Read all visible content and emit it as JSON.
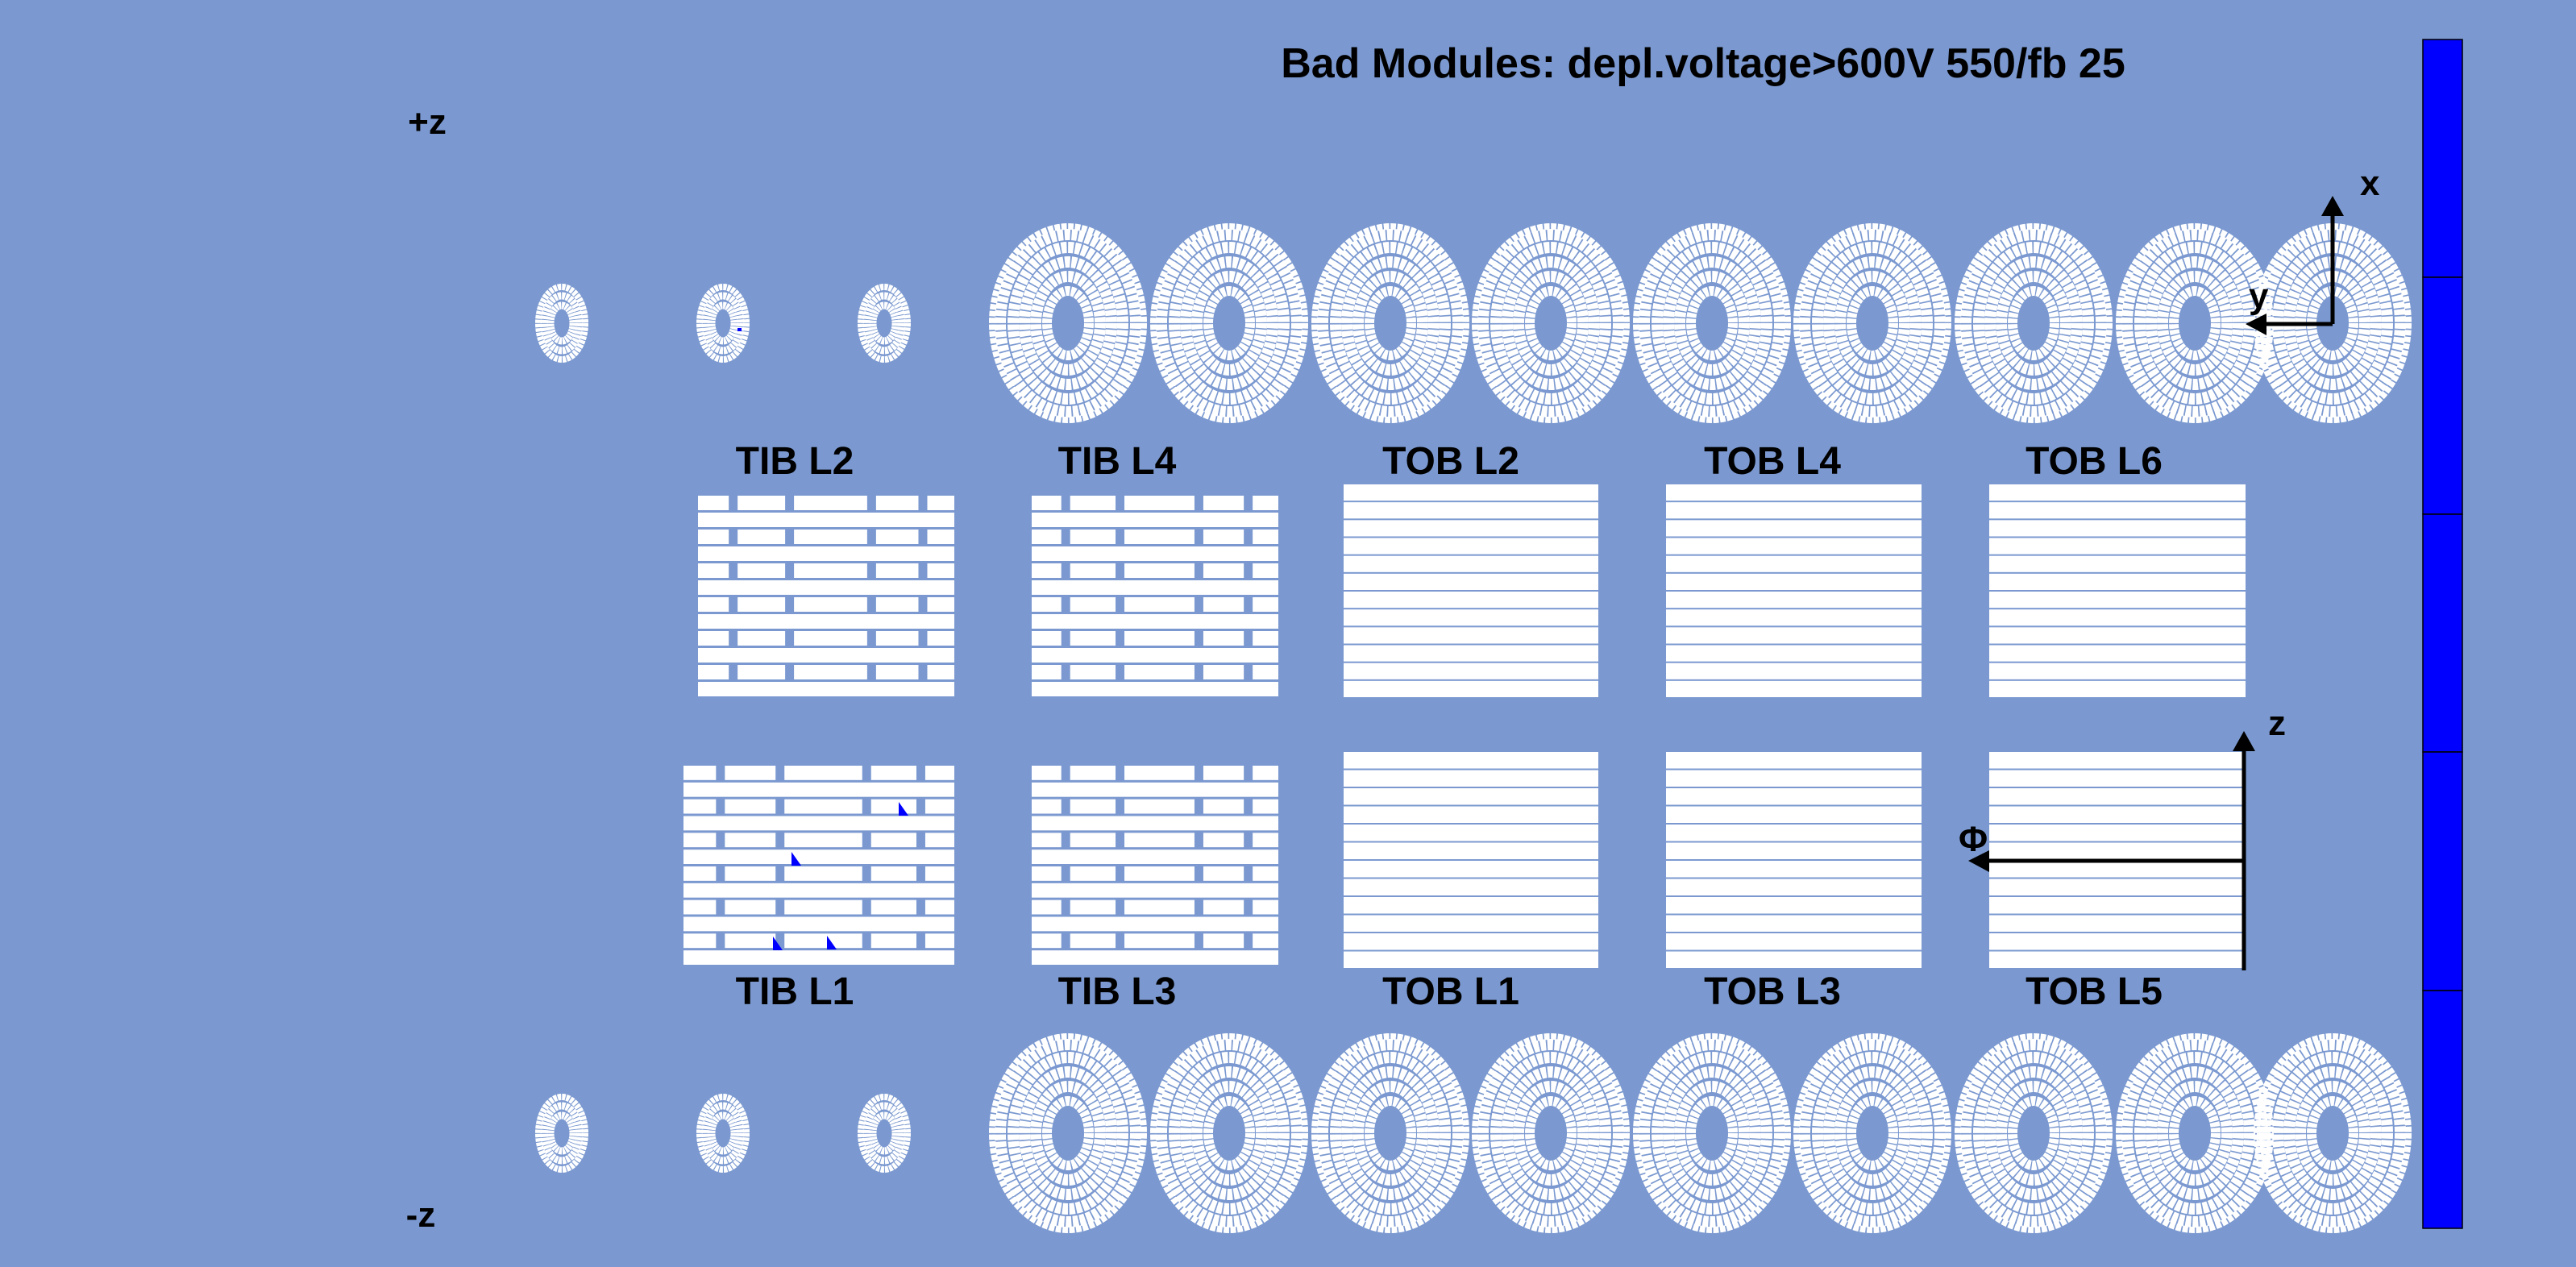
{
  "title": "Bad Modules: depl.voltage>600V 550/fb 25",
  "z_plus_label": "+z",
  "z_minus_label": "-z",
  "colors": {
    "background": "#7b99d0",
    "module": "#ffffff",
    "bad_module": "#0000ff",
    "palette": "#0000ff"
  },
  "layers_upper": [
    "TIB L2",
    "TIB L4",
    "TOB L2",
    "TOB L4",
    "TOB L6"
  ],
  "layers_lower": [
    "TIB L1",
    "TIB L3",
    "TOB L1",
    "TOB L3",
    "TOB L5"
  ],
  "axes": {
    "endcap_x": "x",
    "endcap_y": "y",
    "barrel_z": "z",
    "barrel_phi": "Φ"
  }
}
